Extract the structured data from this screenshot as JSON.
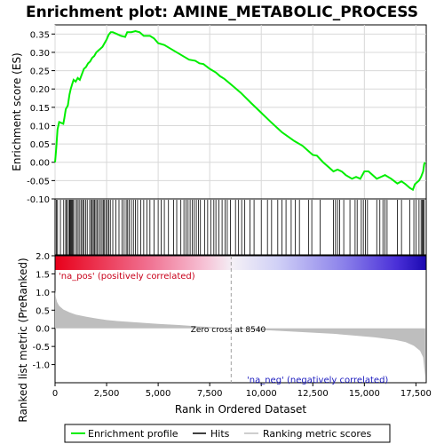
{
  "chart_data": {
    "type": "line",
    "title": "Enrichment plot: AMINE_METABOLIC_PROCESS",
    "x_axis": {
      "label": "Rank in Ordered Dataset",
      "range": [
        0,
        18000
      ],
      "ticks": [
        0,
        2500,
        5000,
        7500,
        10000,
        12500,
        15000,
        17500
      ],
      "tick_labels": [
        "0",
        "2,500",
        "5,000",
        "7,500",
        "10,000",
        "12,500",
        "15,000",
        "17,500"
      ]
    },
    "es_panel": {
      "ylabel": "Enrichment score (ES)",
      "ylim": [
        -0.1,
        0.375
      ],
      "ticks": [
        -0.1,
        -0.05,
        0.0,
        0.05,
        0.1,
        0.15,
        0.2,
        0.25,
        0.3,
        0.35
      ],
      "tick_labels": [
        "-0.10",
        "-0.05",
        "0.00",
        "0.05",
        "0.10",
        "0.15",
        "0.20",
        "0.25",
        "0.30",
        "0.35"
      ],
      "grid": true,
      "series": [
        {
          "name": "Enrichment profile",
          "color": "#00ee00",
          "points": [
            [
              0,
              0.0
            ],
            [
              60,
              0.04
            ],
            [
              120,
              0.09
            ],
            [
              200,
              0.11
            ],
            [
              400,
              0.105
            ],
            [
              450,
              0.12
            ],
            [
              520,
              0.145
            ],
            [
              620,
              0.155
            ],
            [
              700,
              0.185
            ],
            [
              760,
              0.2
            ],
            [
              840,
              0.215
            ],
            [
              900,
              0.225
            ],
            [
              1000,
              0.22
            ],
            [
              1100,
              0.23
            ],
            [
              1200,
              0.225
            ],
            [
              1300,
              0.24
            ],
            [
              1400,
              0.255
            ],
            [
              1500,
              0.26
            ],
            [
              1600,
              0.27
            ],
            [
              1700,
              0.275
            ],
            [
              1800,
              0.285
            ],
            [
              1900,
              0.29
            ],
            [
              2000,
              0.3
            ],
            [
              2100,
              0.305
            ],
            [
              2200,
              0.31
            ],
            [
              2300,
              0.315
            ],
            [
              2400,
              0.325
            ],
            [
              2500,
              0.335
            ],
            [
              2600,
              0.348
            ],
            [
              2700,
              0.355
            ],
            [
              2800,
              0.355
            ],
            [
              3000,
              0.35
            ],
            [
              3200,
              0.345
            ],
            [
              3400,
              0.342
            ],
            [
              3500,
              0.355
            ],
            [
              3700,
              0.355
            ],
            [
              3900,
              0.358
            ],
            [
              4100,
              0.355
            ],
            [
              4300,
              0.345
            ],
            [
              4600,
              0.345
            ],
            [
              4800,
              0.338
            ],
            [
              5000,
              0.325
            ],
            [
              5300,
              0.32
            ],
            [
              5600,
              0.31
            ],
            [
              5900,
              0.3
            ],
            [
              6200,
              0.29
            ],
            [
              6500,
              0.28
            ],
            [
              6800,
              0.277
            ],
            [
              7000,
              0.27
            ],
            [
              7200,
              0.268
            ],
            [
              7500,
              0.255
            ],
            [
              7800,
              0.245
            ],
            [
              8000,
              0.235
            ],
            [
              8200,
              0.228
            ],
            [
              8540,
              0.212
            ],
            [
              9000,
              0.19
            ],
            [
              9500,
              0.162
            ],
            [
              10000,
              0.135
            ],
            [
              10500,
              0.108
            ],
            [
              11000,
              0.082
            ],
            [
              11300,
              0.07
            ],
            [
              11600,
              0.058
            ],
            [
              12000,
              0.045
            ],
            [
              12300,
              0.03
            ],
            [
              12500,
              0.02
            ],
            [
              12700,
              0.018
            ],
            [
              13000,
              0.0
            ],
            [
              13300,
              -0.015
            ],
            [
              13500,
              -0.025
            ],
            [
              13700,
              -0.02
            ],
            [
              13900,
              -0.025
            ],
            [
              14100,
              -0.035
            ],
            [
              14400,
              -0.045
            ],
            [
              14600,
              -0.04
            ],
            [
              14800,
              -0.045
            ],
            [
              15000,
              -0.025
            ],
            [
              15200,
              -0.025
            ],
            [
              15400,
              -0.035
            ],
            [
              15600,
              -0.045
            ],
            [
              15800,
              -0.04
            ],
            [
              16000,
              -0.035
            ],
            [
              16300,
              -0.045
            ],
            [
              16600,
              -0.058
            ],
            [
              16800,
              -0.052
            ],
            [
              17000,
              -0.06
            ],
            [
              17200,
              -0.07
            ],
            [
              17350,
              -0.075
            ],
            [
              17450,
              -0.06
            ],
            [
              17550,
              -0.055
            ],
            [
              17650,
              -0.05
            ],
            [
              17750,
              -0.04
            ],
            [
              17850,
              -0.025
            ],
            [
              17900,
              -0.005
            ],
            [
              17950,
              0.0
            ]
          ]
        }
      ]
    },
    "hits_panel": {
      "series_name": "Hits",
      "color": "#000000",
      "hit_ranks": [
        60,
        120,
        260,
        420,
        520,
        560,
        640,
        700,
        720,
        760,
        800,
        840,
        880,
        960,
        1050,
        1120,
        1200,
        1280,
        1340,
        1400,
        1480,
        1560,
        1680,
        1760,
        1800,
        1860,
        1920,
        1980,
        2040,
        2120,
        2200,
        2280,
        2340,
        2400,
        2470,
        2540,
        2600,
        2680,
        2800,
        2950,
        3100,
        3250,
        3350,
        3450,
        3520,
        3600,
        3700,
        3800,
        3900,
        4000,
        4150,
        4300,
        4450,
        4600,
        4800,
        5000,
        5150,
        5300,
        5500,
        5750,
        5900,
        6100,
        6250,
        6350,
        6450,
        6550,
        6650,
        6750,
        6850,
        6950,
        7050,
        7250,
        7400,
        7550,
        7700,
        7800,
        7950,
        8100,
        8250,
        8350,
        8500,
        8750,
        8900,
        9050,
        9200,
        9450,
        9650,
        10000,
        10300,
        10500,
        10800,
        11000,
        11200,
        11450,
        11650,
        11850,
        12300,
        12450,
        12850,
        13500,
        13600,
        13700,
        13800,
        14000,
        14300,
        14550,
        14650,
        14850,
        14950,
        15050,
        15150,
        15600,
        15750,
        15900,
        16000,
        16100,
        16600,
        16800,
        17200,
        17400,
        17500,
        17650,
        17750,
        17800,
        17850,
        17900
      ]
    },
    "metric_panel": {
      "ylabel": "Ranked list metric (PreRanked)",
      "ylim": [
        -1.5,
        2.0
      ],
      "ticks": [
        -1.0,
        -0.5,
        0.0,
        0.5,
        1.0,
        1.5,
        2.0
      ],
      "tick_labels": [
        "-1.0",
        "-0.5",
        "0.0",
        "0.5",
        "1.0",
        "1.5",
        "2.0"
      ],
      "series_name": "Ranking metric scores",
      "color": "#bebebe",
      "profile": [
        [
          0,
          1.05
        ],
        [
          40,
          0.85
        ],
        [
          100,
          0.72
        ],
        [
          200,
          0.62
        ],
        [
          400,
          0.52
        ],
        [
          700,
          0.44
        ],
        [
          1000,
          0.38
        ],
        [
          1500,
          0.32
        ],
        [
          2000,
          0.27
        ],
        [
          2500,
          0.23
        ],
        [
          3000,
          0.2
        ],
        [
          4000,
          0.16
        ],
        [
          5000,
          0.12
        ],
        [
          6000,
          0.09
        ],
        [
          7000,
          0.05
        ],
        [
          8000,
          0.02
        ],
        [
          8540,
          0.0
        ],
        [
          9500,
          -0.03
        ],
        [
          10500,
          -0.06
        ],
        [
          11500,
          -0.09
        ],
        [
          12500,
          -0.12
        ],
        [
          13500,
          -0.15
        ],
        [
          14500,
          -0.2
        ],
        [
          15500,
          -0.25
        ],
        [
          16500,
          -0.32
        ],
        [
          17000,
          -0.38
        ],
        [
          17400,
          -0.48
        ],
        [
          17700,
          -0.62
        ],
        [
          17850,
          -0.8
        ],
        [
          17950,
          -1.35
        ]
      ],
      "zero_cross": 8540,
      "zero_cross_label": "Zero cross at 8540",
      "pos_label": "'na_pos' (positively correlated)",
      "neg_label": "'na_neg' (negatively correlated)"
    },
    "legend": {
      "position": "bottom",
      "entries": [
        "Enrichment profile",
        "Hits",
        "Ranking metric scores"
      ]
    }
  }
}
